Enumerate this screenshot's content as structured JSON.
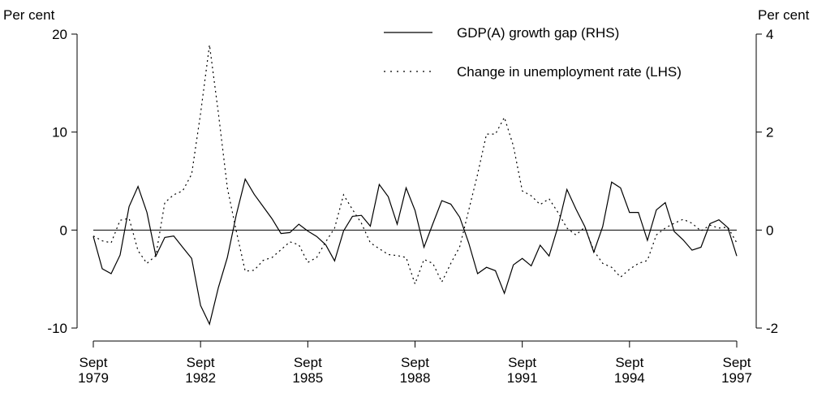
{
  "chart_data": {
    "type": "line",
    "ylabel": "Per cent",
    "y2label": "Per cent",
    "categories": [
      "Sept 1979",
      null,
      null,
      null,
      null,
      null,
      null,
      null,
      null,
      null,
      null,
      null,
      "Sept 1982",
      null,
      null,
      null,
      null,
      null,
      null,
      null,
      null,
      null,
      null,
      null,
      "Sept 1985",
      null,
      null,
      null,
      null,
      null,
      null,
      null,
      null,
      null,
      null,
      null,
      "Sept 1988",
      null,
      null,
      null,
      null,
      null,
      null,
      null,
      null,
      null,
      null,
      null,
      "Sept 1991",
      null,
      null,
      null,
      null,
      null,
      null,
      null,
      null,
      null,
      null,
      null,
      "Sept 1994",
      null,
      null,
      null,
      null,
      null,
      null,
      null,
      null,
      null,
      null,
      null,
      "Sept 1997"
    ],
    "series": [
      {
        "name": "GDP(A) growth gap (RHS)",
        "color": "#000000",
        "linestyle": "solid",
        "axis": "y2",
        "values": [
          -0.13,
          -0.79,
          -0.89,
          -0.51,
          0.48,
          0.89,
          0.36,
          -0.53,
          -0.15,
          -0.12,
          -0.35,
          -0.58,
          -1.54,
          -1.92,
          -1.17,
          -0.56,
          0.31,
          1.04,
          0.73,
          0.48,
          0.23,
          -0.07,
          -0.05,
          0.12,
          -0.02,
          -0.13,
          -0.3,
          -0.63,
          -0.02,
          0.28,
          0.3,
          0.08,
          0.93,
          0.68,
          0.12,
          0.86,
          0.4,
          -0.35,
          0.13,
          0.6,
          0.53,
          0.26,
          -0.26,
          -0.89,
          -0.76,
          -0.83,
          -1.29,
          -0.71,
          -0.58,
          -0.73,
          -0.31,
          -0.53,
          0.07,
          0.83,
          0.43,
          0.07,
          -0.45,
          0.07,
          0.98,
          0.86,
          0.36,
          0.36,
          -0.21,
          0.41,
          0.56,
          -0.03,
          -0.2,
          -0.41,
          -0.35,
          0.13,
          0.21,
          0.05,
          -0.53
        ]
      },
      {
        "name": "Change in unemployment rate (LHS)",
        "color": "#000000",
        "linestyle": "dotted",
        "values": [
          -0.6,
          -1.1,
          -1.3,
          1.0,
          1.2,
          -2.1,
          -3.4,
          -2.6,
          2.8,
          3.6,
          4.0,
          5.7,
          11.9,
          18.9,
          11.9,
          4.3,
          -0.1,
          -4.2,
          -4.1,
          -3.1,
          -2.8,
          -2.0,
          -1.2,
          -1.5,
          -3.3,
          -2.8,
          -1.2,
          0.2,
          3.6,
          2.1,
          0.7,
          -1.3,
          -1.9,
          -2.5,
          -2.6,
          -2.8,
          -5.5,
          -3.0,
          -3.4,
          -5.3,
          -3.4,
          -1.7,
          2.0,
          5.7,
          9.8,
          9.8,
          11.5,
          8.6,
          4.0,
          3.5,
          2.6,
          3.2,
          1.8,
          0.2,
          -0.5,
          0.3,
          -2.1,
          -3.4,
          -3.8,
          -4.8,
          -4.0,
          -3.4,
          -3.1,
          -0.5,
          0.2,
          0.7,
          1.1,
          0.7,
          -0.1,
          0.5,
          0.2,
          0.3,
          -1.3
        ]
      }
    ],
    "ylim": [
      -10,
      20
    ],
    "yticks": [
      -10,
      0,
      10,
      20
    ],
    "y2lim": [
      -2,
      4
    ],
    "y2ticks": [
      -2,
      0,
      2,
      4
    ],
    "legend": "top-right"
  }
}
